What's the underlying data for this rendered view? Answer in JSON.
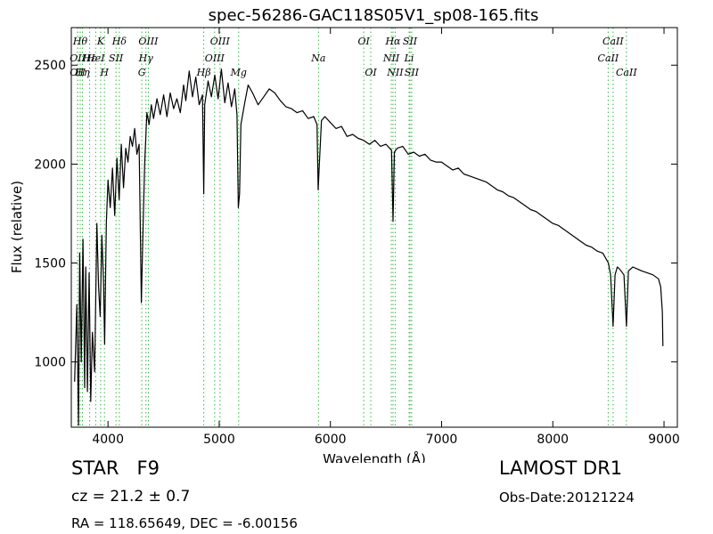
{
  "chart_data": {
    "type": "line",
    "title": "spec-56286-GAC118S05V1_sp08-165.fits",
    "xlabel": "Wavelength (Å)",
    "ylabel": "Flux (relative)",
    "xlim": [
      3670,
      9120
    ],
    "ylim": [
      670,
      2690
    ],
    "x_ticks": [
      4000,
      5000,
      6000,
      7000,
      8000,
      9000
    ],
    "y_ticks": [
      1000,
      1500,
      2000,
      2500
    ],
    "grid": false,
    "series": [
      {
        "color": "#000000",
        "points": [
          [
            3700,
            900
          ],
          [
            3720,
            1290
          ],
          [
            3735,
            680
          ],
          [
            3745,
            1550
          ],
          [
            3760,
            1000
          ],
          [
            3775,
            1620
          ],
          [
            3790,
            870
          ],
          [
            3800,
            1480
          ],
          [
            3815,
            850
          ],
          [
            3830,
            1450
          ],
          [
            3845,
            800
          ],
          [
            3860,
            1150
          ],
          [
            3880,
            950
          ],
          [
            3900,
            1700
          ],
          [
            3915,
            1380
          ],
          [
            3930,
            1230
          ],
          [
            3945,
            1640
          ],
          [
            3960,
            1400
          ],
          [
            3970,
            1090
          ],
          [
            3985,
            1700
          ],
          [
            4000,
            1920
          ],
          [
            4020,
            1780
          ],
          [
            4040,
            1980
          ],
          [
            4060,
            1740
          ],
          [
            4080,
            2030
          ],
          [
            4100,
            1820
          ],
          [
            4120,
            2100
          ],
          [
            4140,
            1880
          ],
          [
            4160,
            2080
          ],
          [
            4180,
            2010
          ],
          [
            4200,
            2140
          ],
          [
            4220,
            2090
          ],
          [
            4240,
            2180
          ],
          [
            4260,
            2050
          ],
          [
            4280,
            2100
          ],
          [
            4290,
            1680
          ],
          [
            4300,
            1300
          ],
          [
            4310,
            1560
          ],
          [
            4330,
            2000
          ],
          [
            4350,
            2260
          ],
          [
            4370,
            2200
          ],
          [
            4390,
            2300
          ],
          [
            4410,
            2230
          ],
          [
            4440,
            2330
          ],
          [
            4470,
            2250
          ],
          [
            4500,
            2350
          ],
          [
            4530,
            2240
          ],
          [
            4560,
            2360
          ],
          [
            4590,
            2280
          ],
          [
            4620,
            2330
          ],
          [
            4650,
            2260
          ],
          [
            4680,
            2400
          ],
          [
            4700,
            2320
          ],
          [
            4730,
            2470
          ],
          [
            4760,
            2340
          ],
          [
            4790,
            2440
          ],
          [
            4820,
            2300
          ],
          [
            4850,
            2350
          ],
          [
            4861,
            1850
          ],
          [
            4870,
            2300
          ],
          [
            4900,
            2420
          ],
          [
            4930,
            2340
          ],
          [
            4960,
            2450
          ],
          [
            4990,
            2330
          ],
          [
            5020,
            2480
          ],
          [
            5050,
            2310
          ],
          [
            5080,
            2410
          ],
          [
            5110,
            2290
          ],
          [
            5140,
            2380
          ],
          [
            5160,
            2250
          ],
          [
            5172,
            1780
          ],
          [
            5183,
            1850
          ],
          [
            5195,
            2200
          ],
          [
            5230,
            2310
          ],
          [
            5260,
            2400
          ],
          [
            5300,
            2360
          ],
          [
            5350,
            2300
          ],
          [
            5400,
            2340
          ],
          [
            5450,
            2380
          ],
          [
            5500,
            2360
          ],
          [
            5550,
            2320
          ],
          [
            5600,
            2290
          ],
          [
            5650,
            2280
          ],
          [
            5700,
            2260
          ],
          [
            5750,
            2270
          ],
          [
            5800,
            2230
          ],
          [
            5850,
            2240
          ],
          [
            5880,
            2200
          ],
          [
            5890,
            1870
          ],
          [
            5900,
            1990
          ],
          [
            5920,
            2220
          ],
          [
            5950,
            2240
          ],
          [
            6000,
            2210
          ],
          [
            6050,
            2180
          ],
          [
            6100,
            2190
          ],
          [
            6150,
            2140
          ],
          [
            6200,
            2150
          ],
          [
            6250,
            2130
          ],
          [
            6300,
            2120
          ],
          [
            6350,
            2100
          ],
          [
            6400,
            2120
          ],
          [
            6450,
            2090
          ],
          [
            6500,
            2100
          ],
          [
            6550,
            2070
          ],
          [
            6563,
            1710
          ],
          [
            6575,
            2060
          ],
          [
            6600,
            2080
          ],
          [
            6650,
            2090
          ],
          [
            6700,
            2050
          ],
          [
            6750,
            2060
          ],
          [
            6800,
            2040
          ],
          [
            6850,
            2050
          ],
          [
            6900,
            2020
          ],
          [
            6950,
            2010
          ],
          [
            7000,
            2010
          ],
          [
            7050,
            1990
          ],
          [
            7100,
            1970
          ],
          [
            7150,
            1980
          ],
          [
            7200,
            1950
          ],
          [
            7250,
            1940
          ],
          [
            7300,
            1930
          ],
          [
            7350,
            1920
          ],
          [
            7400,
            1910
          ],
          [
            7450,
            1890
          ],
          [
            7500,
            1870
          ],
          [
            7550,
            1860
          ],
          [
            7600,
            1840
          ],
          [
            7650,
            1830
          ],
          [
            7700,
            1810
          ],
          [
            7750,
            1790
          ],
          [
            7800,
            1770
          ],
          [
            7850,
            1760
          ],
          [
            7900,
            1740
          ],
          [
            7950,
            1720
          ],
          [
            8000,
            1700
          ],
          [
            8050,
            1690
          ],
          [
            8100,
            1670
          ],
          [
            8150,
            1650
          ],
          [
            8200,
            1630
          ],
          [
            8250,
            1610
          ],
          [
            8300,
            1590
          ],
          [
            8350,
            1580
          ],
          [
            8400,
            1560
          ],
          [
            8450,
            1550
          ],
          [
            8480,
            1520
          ],
          [
            8500,
            1500
          ],
          [
            8520,
            1440
          ],
          [
            8542,
            1180
          ],
          [
            8560,
            1440
          ],
          [
            8580,
            1480
          ],
          [
            8600,
            1470
          ],
          [
            8640,
            1440
          ],
          [
            8662,
            1180
          ],
          [
            8680,
            1460
          ],
          [
            8720,
            1480
          ],
          [
            8760,
            1470
          ],
          [
            8800,
            1460
          ],
          [
            8850,
            1450
          ],
          [
            8900,
            1440
          ],
          [
            8950,
            1420
          ],
          [
            8970,
            1380
          ],
          [
            8985,
            1250
          ],
          [
            8990,
            1080
          ]
        ]
      }
    ],
    "line_markers": [
      {
        "x": 3727,
        "label": "OII",
        "row": 1
      },
      {
        "x": 3727,
        "label": "OII",
        "row": 2
      },
      {
        "x": 3750,
        "label": "Hθ",
        "row": 0
      },
      {
        "x": 3770,
        "label": "Hη",
        "row": 2
      },
      {
        "x": 3835,
        "label": "Hε",
        "row": 1
      },
      {
        "x": 3889,
        "label": "HeI",
        "row": 1
      },
      {
        "x": 3934,
        "label": "K",
        "row": 0
      },
      {
        "x": 3968,
        "label": "H",
        "row": 2
      },
      {
        "x": 4072,
        "label": "SII",
        "row": 1
      },
      {
        "x": 4102,
        "label": "Hδ",
        "row": 0
      },
      {
        "x": 4304,
        "label": "G",
        "row": 2
      },
      {
        "x": 4341,
        "label": "Hγ",
        "row": 1
      },
      {
        "x": 4363,
        "label": "OIII",
        "row": 0
      },
      {
        "x": 4861,
        "label": "Hβ",
        "row": 2
      },
      {
        "x": 4959,
        "label": "OIII",
        "row": 1
      },
      {
        "x": 5007,
        "label": "OIII",
        "row": 0
      },
      {
        "x": 5175,
        "label": "Mg",
        "row": 2
      },
      {
        "x": 5893,
        "label": "Na",
        "row": 1
      },
      {
        "x": 6300,
        "label": "OI",
        "row": 0
      },
      {
        "x": 6363,
        "label": "OI",
        "row": 2
      },
      {
        "x": 6548,
        "label": "NII",
        "row": 1
      },
      {
        "x": 6563,
        "label": "Hα",
        "row": 0
      },
      {
        "x": 6583,
        "label": "NII",
        "row": 2
      },
      {
        "x": 6708,
        "label": "Li",
        "row": 1
      },
      {
        "x": 6716,
        "label": "SII",
        "row": 0
      },
      {
        "x": 6731,
        "label": "SII",
        "row": 2
      },
      {
        "x": 8498,
        "label": "CaII",
        "row": 1
      },
      {
        "x": 8542,
        "label": "CaII",
        "row": 0
      },
      {
        "x": 8662,
        "label": "CaII",
        "row": 2
      }
    ]
  },
  "info": {
    "object_class": "STAR",
    "subclass": "F9",
    "catalog": "LAMOST DR1",
    "cz": "cz = 21.2  ± 0.7",
    "obs_date": "Obs-Date:20121224",
    "coords": "RA = 118.65649, DEC = -6.00156"
  },
  "colors": {
    "spectrum": "#000000",
    "marker_lines": "#3cb44b",
    "axes": "#000000"
  }
}
